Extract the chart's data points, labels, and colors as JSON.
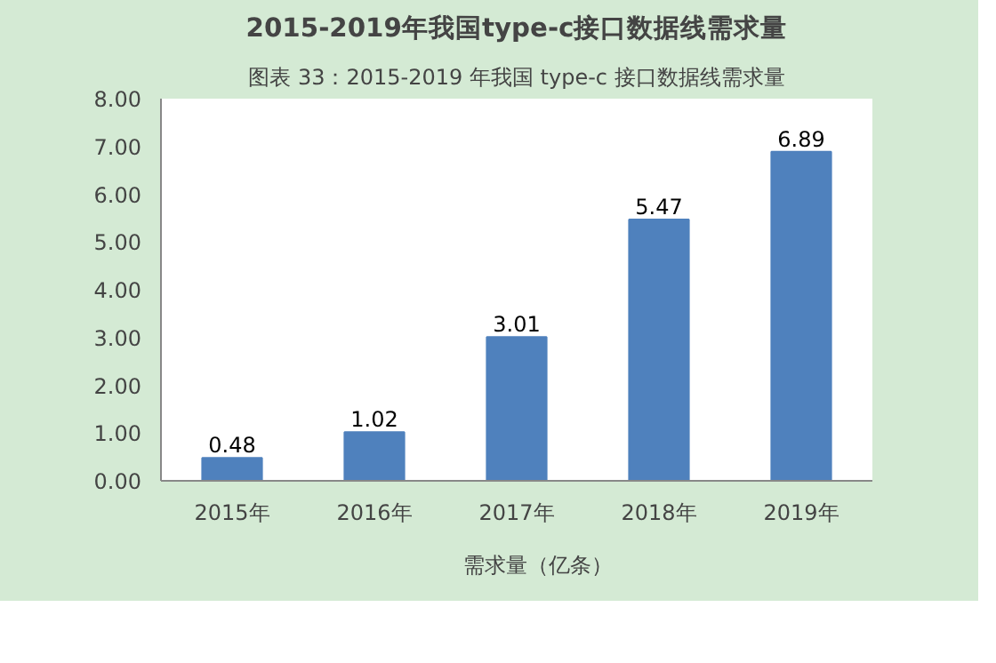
{
  "chart_data": {
    "type": "bar",
    "title": "2015-2019年我国type-c接口数据线需求量",
    "annotations": [
      "图表 33：2015-2019 年我国 type-c 接口数据线需求量"
    ],
    "categories": [
      "2015年",
      "2016年",
      "2017年",
      "2018年",
      "2019年"
    ],
    "series": [
      {
        "name": "需求量（亿条）",
        "color": "#4f81bd",
        "values": [
          0.48,
          1.02,
          3.01,
          5.47,
          6.89
        ]
      }
    ],
    "ylim": [
      0,
      8
    ],
    "yticks": [
      {
        "value": 0,
        "label": "0.00"
      },
      {
        "value": 1,
        "label": "1.00"
      },
      {
        "value": 2,
        "label": "2.00"
      },
      {
        "value": 3,
        "label": "3.00"
      },
      {
        "value": 4,
        "label": "4.00"
      },
      {
        "value": 5,
        "label": "5.00"
      },
      {
        "value": 6,
        "label": "6.00"
      },
      {
        "value": 7,
        "label": "7.00"
      },
      {
        "value": 8,
        "label": "8.00"
      }
    ],
    "data_labels": true,
    "legend": "bottom"
  }
}
